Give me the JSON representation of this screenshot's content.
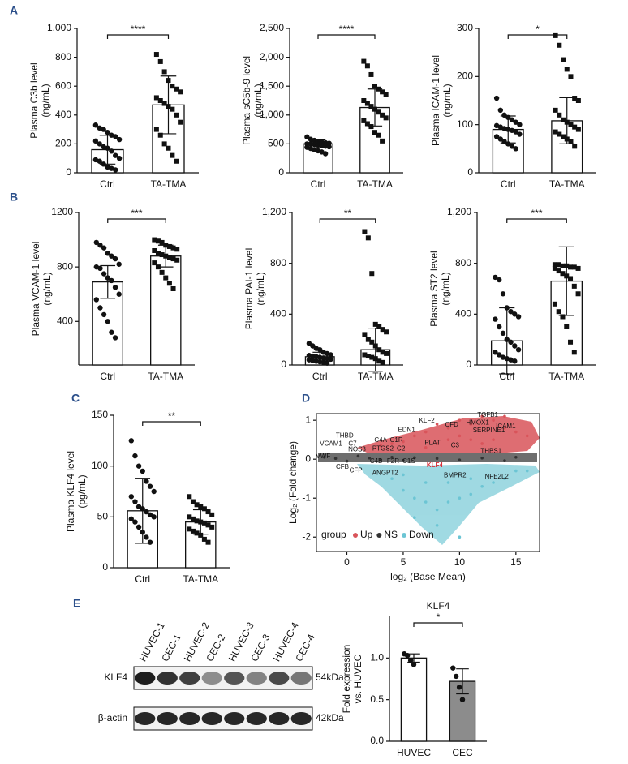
{
  "panel_labels": [
    "A",
    "B",
    "C",
    "D",
    "E"
  ],
  "chart_data": [
    {
      "type": "bar",
      "ylabel": [
        "Plasma C3b level",
        "(ng/mL)"
      ],
      "categories": [
        "Ctrl",
        "TA-TMA"
      ],
      "values": [
        160,
        470
      ],
      "errors": [
        100,
        200
      ],
      "markers": [
        "circle",
        "square"
      ],
      "bar_colors": [
        "#ffffff",
        "#ffffff"
      ],
      "significance": "****",
      "points": [
        [
          330,
          310,
          300,
          280,
          260,
          250,
          230,
          220,
          200,
          180,
          170,
          150,
          120,
          100,
          90,
          80,
          60,
          40,
          30,
          20
        ],
        [
          820,
          770,
          700,
          640,
          600,
          580,
          560,
          520,
          500,
          480,
          460,
          440,
          400,
          350,
          300,
          260,
          200,
          170,
          120,
          80
        ]
      ],
      "ylim": [
        0,
        1000
      ],
      "yticks": [
        0,
        200,
        400,
        600,
        800,
        {
          "value": 1000,
          "label": "1,000"
        }
      ]
    },
    {
      "type": "bar",
      "ylabel": [
        "Plasma sC5b-9 level",
        "(ng/mL)"
      ],
      "categories": [
        "Ctrl",
        "TA-TMA"
      ],
      "values": [
        500,
        1130
      ],
      "errors": [
        70,
        320
      ],
      "markers": [
        "circle",
        "square"
      ],
      "bar_colors": [
        "#ffffff",
        "#ffffff"
      ],
      "significance": "****",
      "points": [
        [
          620,
          580,
          560,
          540,
          530,
          520,
          510,
          500,
          500,
          490,
          480,
          470,
          460,
          450,
          440,
          420,
          400,
          380,
          360,
          330
        ],
        [
          1930,
          1850,
          1700,
          1500,
          1450,
          1400,
          1350,
          1250,
          1200,
          1150,
          1100,
          1050,
          1000,
          950,
          900,
          850,
          800,
          700,
          650,
          550
        ]
      ],
      "ylim": [
        0,
        2500
      ],
      "yticks": [
        0,
        500,
        {
          "value": 1000,
          "label": "1,000"
        },
        {
          "value": 1500,
          "label": "1,500"
        },
        {
          "value": 2000,
          "label": "2,000"
        },
        {
          "value": 2500,
          "label": "2,500"
        }
      ]
    },
    {
      "type": "bar",
      "ylabel": [
        "Plasma ICAM-1 level",
        "(ng/mL)"
      ],
      "categories": [
        "Ctrl",
        "TA-TMA"
      ],
      "values": [
        90,
        108
      ],
      "errors": [
        28,
        48
      ],
      "markers": [
        "circle",
        "square"
      ],
      "bar_colors": [
        "#ffffff",
        "#ffffff"
      ],
      "significance": "*",
      "points": [
        [
          155,
          130,
          120,
          115,
          110,
          105,
          100,
          98,
          95,
          92,
          90,
          88,
          85,
          80,
          75,
          70,
          65,
          60,
          55,
          50
        ],
        [
          285,
          265,
          235,
          215,
          200,
          155,
          150,
          130,
          120,
          110,
          105,
          100,
          95,
          90,
          85,
          80,
          75,
          70,
          65,
          55
        ]
      ],
      "ylim": [
        0,
        300
      ],
      "yticks": [
        0,
        100,
        200,
        300
      ]
    },
    {
      "type": "bar",
      "ylabel": [
        "Plasma VCAM-1 level",
        "(ng/mL)"
      ],
      "categories": [
        "Ctrl",
        "TA-TMA"
      ],
      "values": [
        690,
        880
      ],
      "errors": [
        120,
        80
      ],
      "markers": [
        "circle",
        "square"
      ],
      "bar_colors": [
        "#ffffff",
        "#ffffff"
      ],
      "significance": "***",
      "points": [
        [
          980,
          960,
          940,
          900,
          880,
          860,
          820,
          800,
          790,
          750,
          720,
          700,
          650,
          600,
          560,
          500,
          450,
          400,
          320,
          280
        ],
        [
          1000,
          990,
          980,
          960,
          950,
          940,
          930,
          920,
          900,
          890,
          880,
          870,
          860,
          850,
          830,
          800,
          760,
          720,
          680,
          640
        ]
      ],
      "ylim": [
        80,
        1200
      ],
      "yticks": [
        400,
        800,
        1200
      ]
    },
    {
      "type": "bar",
      "ylabel": [
        "Plasma PAI-1 level",
        "(ng/mL)"
      ],
      "categories": [
        "Ctrl",
        "TA-TMA"
      ],
      "values": [
        65,
        120
      ],
      "errors": [
        35,
        170
      ],
      "markers": [
        "circle",
        "square"
      ],
      "bar_colors": [
        "#ffffff",
        "#ffffff"
      ],
      "significance": "**",
      "points": [
        [
          170,
          150,
          130,
          120,
          100,
          90,
          80,
          75,
          70,
          65,
          60,
          55,
          50,
          45,
          40,
          35,
          30,
          25,
          20,
          15
        ],
        [
          1050,
          1000,
          720,
          320,
          300,
          280,
          260,
          240,
          200,
          180,
          150,
          120,
          100,
          90,
          80,
          70,
          60,
          50,
          30,
          20
        ]
      ],
      "ylim": [
        0,
        1200
      ],
      "yticks": [
        0,
        400,
        800,
        {
          "value": 1200,
          "label": "1,200"
        }
      ]
    },
    {
      "type": "bar",
      "ylabel": [
        "Plasma ST2 level",
        "(ng/mL)"
      ],
      "categories": [
        "Ctrl",
        "TA-TMA"
      ],
      "values": [
        190,
        660
      ],
      "errors": [
        260,
        270
      ],
      "markers": [
        "circle",
        "square"
      ],
      "bar_colors": [
        "#ffffff",
        "#ffffff"
      ],
      "significance": "***",
      "points": [
        [
          690,
          670,
          560,
          450,
          420,
          400,
          380,
          360,
          300,
          250,
          200,
          180,
          150,
          120,
          100,
          80,
          60,
          50,
          40,
          30
        ],
        [
          790,
          790,
          780,
          780,
          770,
          770,
          760,
          760,
          740,
          720,
          700,
          680,
          620,
          560,
          480,
          420,
          380,
          300,
          180,
          100
        ]
      ],
      "ylim": [
        0,
        1200
      ],
      "yticks": [
        0,
        400,
        800,
        {
          "value": 1200,
          "label": "1,200"
        }
      ]
    },
    {
      "type": "bar",
      "ylabel": [
        "Plasma KLF4 level",
        "(pg/mL)"
      ],
      "categories": [
        "Ctrl",
        "TA-TMA"
      ],
      "values": [
        56,
        45
      ],
      "errors": [
        32,
        12
      ],
      "markers": [
        "circle",
        "square"
      ],
      "bar_colors": [
        "#ffffff",
        "#ffffff"
      ],
      "significance": "**",
      "points": [
        [
          125,
          110,
          100,
          95,
          85,
          80,
          75,
          70,
          65,
          60,
          58,
          55,
          52,
          50,
          48,
          45,
          40,
          35,
          30,
          25
        ],
        [
          70,
          65,
          62,
          60,
          58,
          55,
          52,
          50,
          48,
          46,
          45,
          44,
          42,
          40,
          38,
          36,
          34,
          32,
          28,
          25
        ]
      ],
      "ylim": [
        0,
        150
      ],
      "yticks": [
        0,
        50,
        100,
        150
      ]
    },
    {
      "type": "scatter",
      "xlabel": "log₂ (Base Mean)",
      "ylabel": "Log₂ (Fold change)",
      "legend_title": "group",
      "xlim": [
        -2.7,
        17.1
      ],
      "xticks": [
        0,
        5,
        10,
        15
      ],
      "ylim": [
        -2.37,
        1.17
      ],
      "yticks": [
        -2,
        -1,
        0,
        1
      ],
      "series": [
        {
          "name": "Up",
          "color": "#d9545a",
          "x": [
            6,
            7,
            8,
            9,
            10,
            11,
            12,
            13,
            14,
            15,
            16,
            8,
            9,
            10,
            11,
            12,
            13,
            5,
            4,
            3,
            14,
            7
          ],
          "values": [
            0.6,
            0.7,
            0.9,
            0.8,
            1.0,
            0.9,
            1.1,
            1.0,
            0.8,
            0.7,
            0.6,
            0.4,
            0.5,
            0.6,
            0.5,
            0.4,
            0.5,
            0.45,
            0.4,
            0.35,
            1.1,
            0.3
          ]
        },
        {
          "name": "NS",
          "color": "#333333",
          "x": [
            -2,
            -1,
            0,
            1,
            2,
            3,
            4,
            5,
            6,
            8,
            10,
            12,
            14,
            15
          ],
          "values": [
            0.05,
            0.02,
            -0.05,
            0.08,
            0.03,
            -0.02,
            0.05,
            -0.03,
            0.04,
            0.02,
            -0.02,
            0.03,
            -0.04,
            0.05
          ]
        },
        {
          "name": "Down",
          "color": "#6cc5d4",
          "x": [
            4,
            5,
            6,
            7,
            8,
            9,
            10,
            11,
            12,
            13,
            14,
            7,
            9,
            11,
            8,
            10,
            6,
            15,
            16,
            5
          ],
          "values": [
            -0.5,
            -0.8,
            -1.0,
            -1.1,
            -1.3,
            -1.1,
            -1.0,
            -0.9,
            -0.7,
            -0.6,
            -0.5,
            -0.6,
            -0.6,
            -0.5,
            -1.7,
            -2.0,
            -1.5,
            -0.3,
            -0.3,
            -0.4
          ]
        }
      ],
      "annotations": [
        {
          "text": "TGFB1",
          "x": 12.5,
          "y": 1.13
        },
        {
          "text": "KLF2",
          "x": 7.1,
          "y": 0.98
        },
        {
          "text": "CFD",
          "x": 9.3,
          "y": 0.88
        },
        {
          "text": "HMOX1",
          "x": 11.6,
          "y": 0.93
        },
        {
          "text": "ICAM1",
          "x": 14.1,
          "y": 0.84
        },
        {
          "text": "SERPINE1",
          "x": 12.6,
          "y": 0.74
        },
        {
          "text": "EDN1",
          "x": 5.3,
          "y": 0.75
        },
        {
          "text": "THBD",
          "x": -0.2,
          "y": 0.6
        },
        {
          "text": "C4A",
          "x": 3.0,
          "y": 0.49
        },
        {
          "text": "C1R",
          "x": 4.4,
          "y": 0.49
        },
        {
          "text": "VCAM1",
          "x": -1.4,
          "y": 0.39
        },
        {
          "text": "C7",
          "x": 0.5,
          "y": 0.39
        },
        {
          "text": "PLAT",
          "x": 7.6,
          "y": 0.41
        },
        {
          "text": "C3",
          "x": 9.6,
          "y": 0.35
        },
        {
          "text": "THBS1",
          "x": 12.8,
          "y": 0.2
        },
        {
          "text": "NOS3",
          "x": 0.9,
          "y": 0.25
        },
        {
          "text": "PTGS2",
          "x": 3.2,
          "y": 0.27
        },
        {
          "text": "C2",
          "x": 4.8,
          "y": 0.27
        },
        {
          "text": "VWF",
          "x": -2.1,
          "y": 0.07
        },
        {
          "text": "C4B",
          "x": 2.6,
          "y": -0.06
        },
        {
          "text": "F2R",
          "x": 4.1,
          "y": -0.06
        },
        {
          "text": "C1S",
          "x": 5.5,
          "y": -0.06
        },
        {
          "text": "CFB",
          "x": -0.4,
          "y": -0.2
        },
        {
          "text": "CFP",
          "x": 0.8,
          "y": -0.3
        },
        {
          "text": "ANGPT2",
          "x": 3.4,
          "y": -0.36
        },
        {
          "text": "KLF4",
          "x": 7.8,
          "y": -0.16,
          "color": "#d9303a"
        },
        {
          "text": "BMPR2",
          "x": 9.6,
          "y": -0.42
        },
        {
          "text": "NFE2L2",
          "x": 13.3,
          "y": -0.45
        }
      ]
    },
    {
      "type": "bar",
      "title": "KLF4",
      "ylabel": [
        "Fold expression",
        "vs. HUVEC"
      ],
      "categories": [
        "HUVEC",
        "CEC"
      ],
      "values": [
        1.0,
        0.72
      ],
      "errors": [
        0.05,
        0.15
      ],
      "markers": [
        "circle",
        "circle"
      ],
      "bar_colors": [
        "#ffffff",
        "#8c8c8c"
      ],
      "significance": "*",
      "points": [
        [
          1.05,
          1.03,
          0.97,
          0.92
        ],
        [
          0.88,
          0.78,
          0.65,
          0.5
        ]
      ],
      "ylim": [
        0,
        1.5
      ],
      "yticks": [
        {
          "value": 0,
          "label": "0.0"
        },
        {
          "value": 0.5,
          "label": "0.5"
        },
        {
          "value": 1,
          "label": "1.0"
        }
      ]
    }
  ],
  "blot": {
    "lanes": [
      "HUVEC-1",
      "CEC-1",
      "HUVEC-2",
      "CEC-2",
      "HUVEC-3",
      "CEC-3",
      "HUVEC-4",
      "CEC-4"
    ],
    "rows": [
      {
        "label": "KLF4",
        "size": "54kDa"
      },
      {
        "label": "β-actin",
        "size": "42kDa"
      }
    ]
  }
}
